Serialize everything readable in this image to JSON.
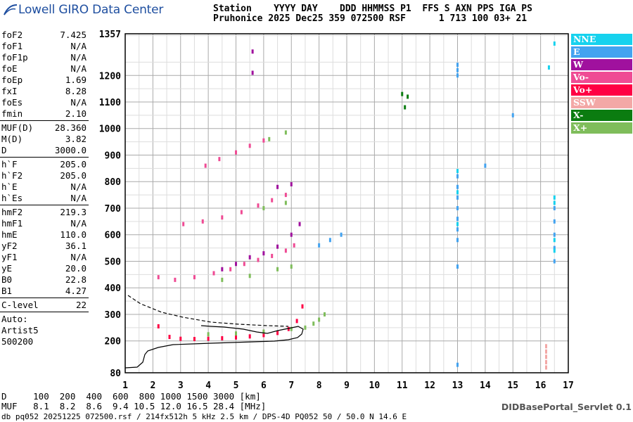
{
  "logo": {
    "text": "Lowell GIRO Data Center"
  },
  "header": {
    "line1": "Station    YYYY DAY    DDD HHMMSS P1  FFS S AXN PPS IGA PS",
    "line2": "Pruhonice 2025 Dec25 359 072500 RSF      1 713 100 03+ 21"
  },
  "params": {
    "g1": [
      [
        "foF2",
        "7.425"
      ],
      [
        "foF1",
        "N/A"
      ],
      [
        "foF1p",
        "N/A"
      ],
      [
        "foE",
        "N/A"
      ],
      [
        "foEp",
        "1.69"
      ],
      [
        "fxI",
        "8.28"
      ],
      [
        "foEs",
        "N/A"
      ],
      [
        "fmin",
        "2.10"
      ]
    ],
    "g2": [
      [
        "MUF(D)",
        "28.360"
      ],
      [
        "M(D)",
        "3.82"
      ],
      [
        "D",
        "3000.0"
      ]
    ],
    "g3": [
      [
        "h`F",
        "205.0"
      ],
      [
        "h`F2",
        "205.0"
      ],
      [
        "h`E",
        "N/A"
      ],
      [
        "h`Es",
        "N/A"
      ]
    ],
    "g4": [
      [
        "hmF2",
        "219.3"
      ],
      [
        "hmF1",
        "N/A"
      ],
      [
        "hmE",
        "110.0"
      ],
      [
        "yF2",
        "36.1"
      ],
      [
        "yF1",
        "N/A"
      ],
      [
        "yE",
        "20.0"
      ],
      [
        "B0",
        "22.8"
      ],
      [
        "B1",
        "4.27"
      ]
    ],
    "g5": [
      [
        "C-level",
        "22"
      ]
    ],
    "auto": [
      "Auto:",
      "Artist5",
      "500200"
    ]
  },
  "legend": [
    {
      "label": "NNE",
      "color": "#16d2ee"
    },
    {
      "label": "E",
      "color": "#43a3f0"
    },
    {
      "label": "W",
      "color": "#a0119e"
    },
    {
      "label": "Vo-",
      "color": "#ef4b94"
    },
    {
      "label": "Vo+",
      "color": "#ff0044"
    },
    {
      "label": "SSW",
      "color": "#f3a8a6"
    },
    {
      "label": "X-",
      "color": "#0b7c10"
    },
    {
      "label": "X+",
      "color": "#7fbd5b"
    }
  ],
  "bottom": {
    "line1": "D     100  200  400  600  800 1000 1500 3000 [km]",
    "line2": "MUF   8.1  8.2  8.6  9.4 10.5 12.0 16.5 28.4 [MHz]"
  },
  "footer": "db pq052 20251225 072500.rsf / 214fx512h 5 kHz 2.5 km / DPS-4D PQ052 50 / 50.0 N 14.6 E",
  "servlet": "DIDBasePortal_Servlet 0.1",
  "chart_data": {
    "type": "scatter",
    "title": "",
    "xlabel": "",
    "ylabel": "",
    "xlim": [
      1,
      17
    ],
    "ylim": [
      80,
      1357
    ],
    "x_ticks": [
      "1",
      "2",
      "3",
      "4",
      "5",
      "6",
      "7",
      "8",
      "9",
      "10",
      "11",
      "12",
      "13",
      "14",
      "15",
      "16",
      "17"
    ],
    "y_ticks": [
      "80",
      "200",
      "300",
      "400",
      "500",
      "600",
      "700",
      "800",
      "900",
      "1000",
      "1100",
      "1200",
      "1357"
    ],
    "grid": true,
    "legend_position": "right",
    "traces": [
      {
        "name": "Vo+",
        "color": "#ff0044",
        "points": [
          [
            2.2,
            255
          ],
          [
            2.6,
            215
          ],
          [
            3.0,
            208
          ],
          [
            3.5,
            207
          ],
          [
            4.0,
            208
          ],
          [
            4.5,
            210
          ],
          [
            5.0,
            213
          ],
          [
            5.5,
            217
          ],
          [
            6.0,
            222
          ],
          [
            6.5,
            230
          ],
          [
            6.9,
            245
          ],
          [
            7.2,
            275
          ],
          [
            7.4,
            330
          ]
        ]
      },
      {
        "name": "Vo-",
        "color": "#ef4b94",
        "points": [
          [
            2.2,
            440
          ],
          [
            2.8,
            430
          ],
          [
            3.5,
            440
          ],
          [
            4.2,
            455
          ],
          [
            4.8,
            470
          ],
          [
            5.3,
            490
          ],
          [
            5.8,
            505
          ],
          [
            6.3,
            520
          ],
          [
            6.8,
            540
          ],
          [
            7.1,
            560
          ],
          [
            3.1,
            640
          ],
          [
            3.8,
            650
          ],
          [
            4.5,
            665
          ],
          [
            5.2,
            685
          ],
          [
            5.8,
            710
          ],
          [
            6.3,
            730
          ],
          [
            6.8,
            750
          ],
          [
            3.9,
            860
          ],
          [
            4.4,
            885
          ],
          [
            5.0,
            910
          ],
          [
            5.5,
            935
          ],
          [
            6.0,
            955
          ]
        ]
      },
      {
        "name": "W",
        "color": "#a0119e",
        "points": [
          [
            4.5,
            470
          ],
          [
            5.0,
            490
          ],
          [
            5.5,
            515
          ],
          [
            6.0,
            530
          ],
          [
            6.5,
            555
          ],
          [
            7.0,
            600
          ],
          [
            7.3,
            640
          ],
          [
            6.5,
            780
          ],
          [
            7.0,
            790
          ],
          [
            5.6,
            1210
          ],
          [
            5.6,
            1290
          ]
        ]
      },
      {
        "name": "X+",
        "color": "#7fbd5b",
        "points": [
          [
            4.0,
            225
          ],
          [
            5.0,
            228
          ],
          [
            6.0,
            235
          ],
          [
            7.0,
            245
          ],
          [
            7.5,
            250
          ],
          [
            7.8,
            265
          ],
          [
            8.0,
            280
          ],
          [
            8.2,
            300
          ],
          [
            4.5,
            430
          ],
          [
            5.5,
            445
          ],
          [
            6.5,
            470
          ],
          [
            7.0,
            480
          ],
          [
            6.0,
            700
          ],
          [
            6.8,
            720
          ],
          [
            6.2,
            960
          ],
          [
            6.8,
            985
          ]
        ]
      },
      {
        "name": "X-",
        "color": "#0b7c10",
        "points": [
          [
            11.0,
            1130
          ],
          [
            11.2,
            1120
          ],
          [
            11.1,
            1080
          ]
        ]
      },
      {
        "name": "E",
        "color": "#43a3f0",
        "points": [
          [
            8.0,
            560
          ],
          [
            8.4,
            580
          ],
          [
            8.8,
            600
          ],
          [
            13.0,
            1240
          ],
          [
            13.0,
            1220
          ],
          [
            13.0,
            1200
          ],
          [
            13.0,
            820
          ],
          [
            13.0,
            780
          ],
          [
            13.0,
            740
          ],
          [
            13.0,
            700
          ],
          [
            13.0,
            660
          ],
          [
            13.0,
            620
          ],
          [
            13.0,
            580
          ],
          [
            13.0,
            480
          ],
          [
            13.0,
            110
          ],
          [
            16.5,
            700
          ],
          [
            16.5,
            650
          ],
          [
            16.5,
            600
          ],
          [
            16.5,
            550
          ],
          [
            16.5,
            500
          ],
          [
            15.0,
            1050
          ],
          [
            14.0,
            860
          ]
        ]
      },
      {
        "name": "NNE",
        "color": "#16d2ee",
        "points": [
          [
            16.5,
            1320
          ],
          [
            16.3,
            1230
          ],
          [
            16.5,
            740
          ],
          [
            16.5,
            720
          ],
          [
            16.5,
            580
          ],
          [
            16.5,
            540
          ],
          [
            13.0,
            840
          ],
          [
            13.0,
            760
          ],
          [
            13.0,
            640
          ]
        ]
      },
      {
        "name": "SSW",
        "color": "#f3a8a6",
        "points": [
          [
            16.2,
            180
          ],
          [
            16.2,
            160
          ],
          [
            16.2,
            140
          ],
          [
            16.2,
            120
          ],
          [
            16.2,
            100
          ]
        ]
      }
    ]
  }
}
